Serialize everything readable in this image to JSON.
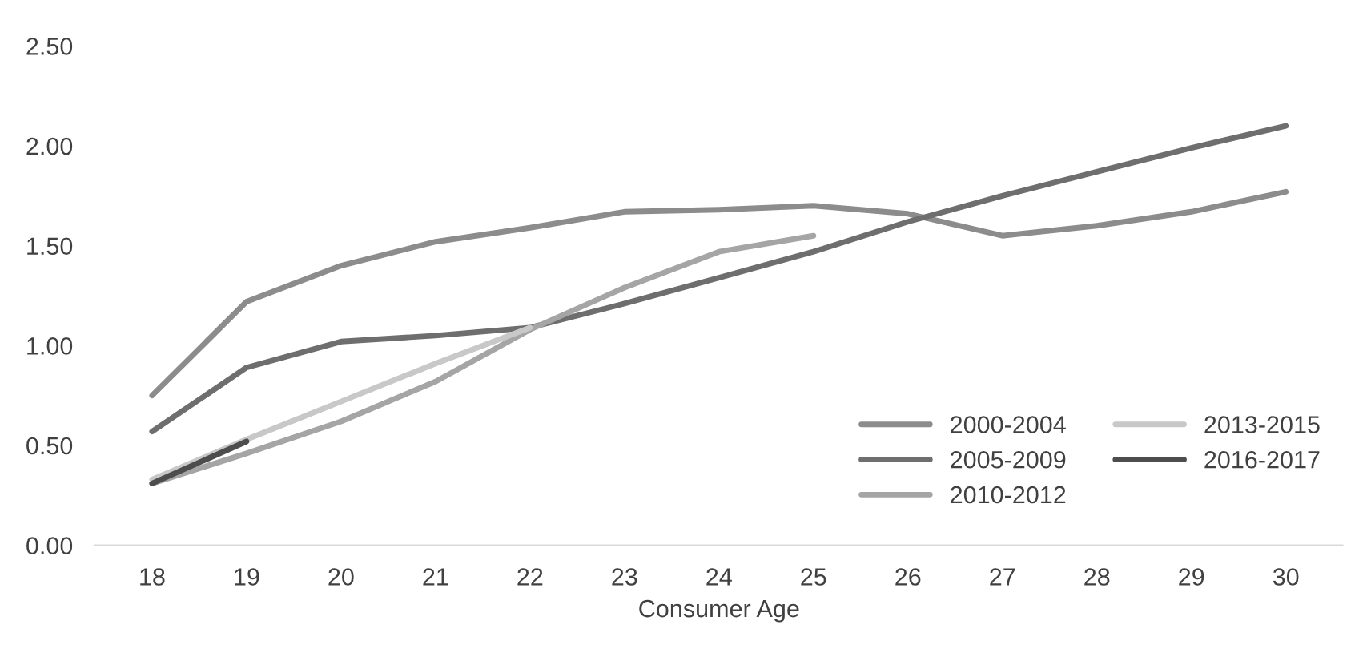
{
  "chart_data": {
    "type": "line",
    "xlabel": "Consumer Age",
    "categories": [
      "18",
      "19",
      "20",
      "21",
      "22",
      "23",
      "24",
      "25",
      "26",
      "27",
      "28",
      "29",
      "30"
    ],
    "series": [
      {
        "name": "2000-2004",
        "color": "#8c8c8c",
        "values": [
          0.75,
          1.22,
          1.4,
          1.52,
          1.59,
          1.67,
          1.68,
          1.7,
          1.66,
          1.55,
          1.6,
          1.67,
          1.77
        ]
      },
      {
        "name": "2005-2009",
        "color": "#6e6e6e",
        "values": [
          0.57,
          0.89,
          1.02,
          1.05,
          1.09,
          1.21,
          1.34,
          1.47,
          1.62,
          1.75,
          1.87,
          1.99,
          2.1
        ]
      },
      {
        "name": "2010-2012",
        "color": "#a5a5a5",
        "values": [
          0.31,
          0.46,
          0.62,
          0.82,
          1.08,
          1.29,
          1.47,
          1.55,
          null,
          null,
          null,
          null,
          null
        ]
      },
      {
        "name": "2013-2015",
        "color": "#c8c8c8",
        "values": [
          0.33,
          0.53,
          0.72,
          0.91,
          1.09,
          null,
          null,
          null,
          null,
          null,
          null,
          null,
          null
        ]
      },
      {
        "name": "2016-2017",
        "color": "#4d4d4d",
        "values": [
          0.31,
          0.52,
          null,
          null,
          null,
          null,
          null,
          null,
          null,
          null,
          null,
          null,
          null
        ]
      }
    ],
    "ylim": [
      0,
      2.5
    ],
    "yticks": [
      {
        "value": 0,
        "label": "0.00"
      },
      {
        "value": 0.5,
        "label": "0.50"
      },
      {
        "value": 1,
        "label": "1.00"
      },
      {
        "value": 1.5,
        "label": "1.50"
      },
      {
        "value": 2,
        "label": "2.00"
      },
      {
        "value": 2.5,
        "label": "2.50"
      }
    ],
    "grid": false,
    "legend": "bottom right",
    "marker": "none",
    "line_style": "solid"
  }
}
